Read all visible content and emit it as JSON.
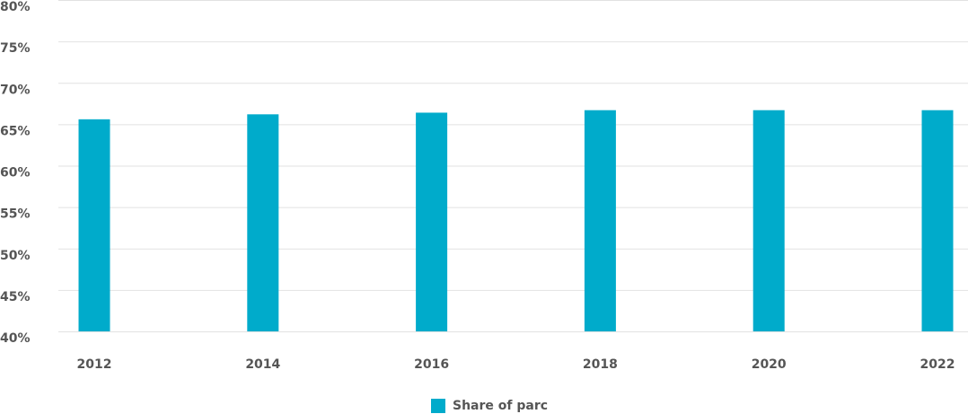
{
  "chart_data": {
    "type": "bar",
    "categories": [
      "2012",
      "2014",
      "2016",
      "2018",
      "2020",
      "2022"
    ],
    "series": [
      {
        "name": "Share of parc",
        "color": "#00abcb",
        "values": [
          65.6,
          66.2,
          66.4,
          66.7,
          66.7,
          66.7
        ]
      }
    ],
    "ylim": [
      40,
      80
    ],
    "yticks": [
      {
        "value": 40,
        "label": "40%"
      },
      {
        "value": 45,
        "label": "45%"
      },
      {
        "value": 50,
        "label": "50%"
      },
      {
        "value": 55,
        "label": "55%"
      },
      {
        "value": 60,
        "label": "60%"
      },
      {
        "value": 65,
        "label": "65%"
      },
      {
        "value": 70,
        "label": "70%"
      },
      {
        "value": 75,
        "label": "75%"
      },
      {
        "value": 80,
        "label": "80%"
      }
    ],
    "grid": true,
    "legend": "bottom"
  }
}
